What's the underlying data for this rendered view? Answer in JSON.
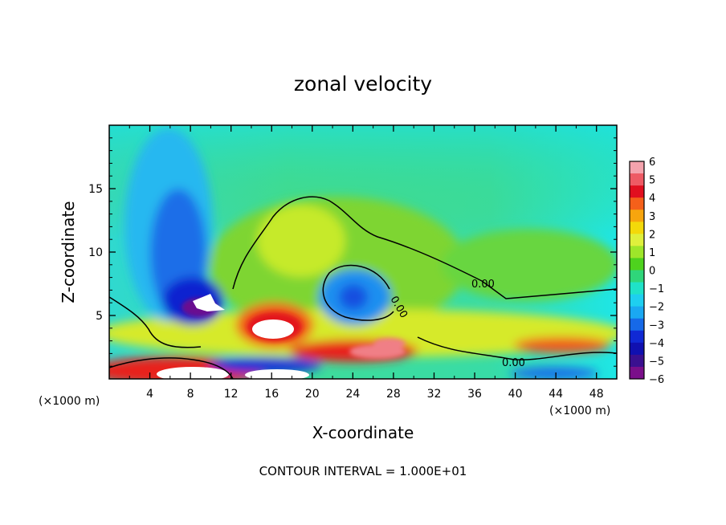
{
  "chart_data": {
    "type": "heatmap",
    "title": "zonal velocity",
    "xlabel": "X-coordinate",
    "ylabel": "Z-coordinate",
    "x_unit_label": "(×1000 m)",
    "x_unit_label_right": "(×1000 m)",
    "footer": "CONTOUR INTERVAL = 1.000E+01",
    "xlim": [
      0,
      50
    ],
    "ylim": [
      0,
      20
    ],
    "x_ticks": [
      4,
      8,
      12,
      16,
      20,
      24,
      28,
      32,
      36,
      40,
      44,
      48
    ],
    "y_ticks": [
      5,
      10,
      15
    ],
    "colorbar": {
      "range": [
        -6,
        6
      ],
      "labels": [
        "6",
        "5",
        "4",
        "3",
        "2",
        "1",
        "0",
        "−1",
        "−2",
        "−3",
        "−4",
        "−5",
        "−6"
      ],
      "colors": [
        "#f4a3ad",
        "#ee5a64",
        "#e10f1f",
        "#f5601a",
        "#f7a50e",
        "#f3d90a",
        "#dff03c",
        "#9ee62a",
        "#4ed21e",
        "#2fd67a",
        "#1fe2c8",
        "#1ecff0",
        "#1aa8f2",
        "#1669e8",
        "#1029d4",
        "#1010b0",
        "#3a1090",
        "#7a0f8a"
      ]
    },
    "contour_labels": [
      "0.00",
      "0.00",
      "0.00"
    ],
    "anomalies": [
      {
        "name": "upper-left-jet",
        "x": 8.5,
        "z": 6,
        "value": -6
      },
      {
        "name": "left-blue-core",
        "x": 7.5,
        "z": 10,
        "value": -3
      },
      {
        "name": "mid-blue-cell",
        "x": 25,
        "z": 6.5,
        "value": -3
      },
      {
        "name": "upper-green-max",
        "x": 19.5,
        "z": 11,
        "value": 1
      },
      {
        "name": "surface-red-1",
        "x": 8,
        "z": 0.9,
        "value": 6
      },
      {
        "name": "red-cell-2",
        "x": 16.5,
        "z": 4,
        "value": 6
      },
      {
        "name": "surface-red-3",
        "x": 26,
        "z": 2.5,
        "value": 5
      }
    ]
  }
}
